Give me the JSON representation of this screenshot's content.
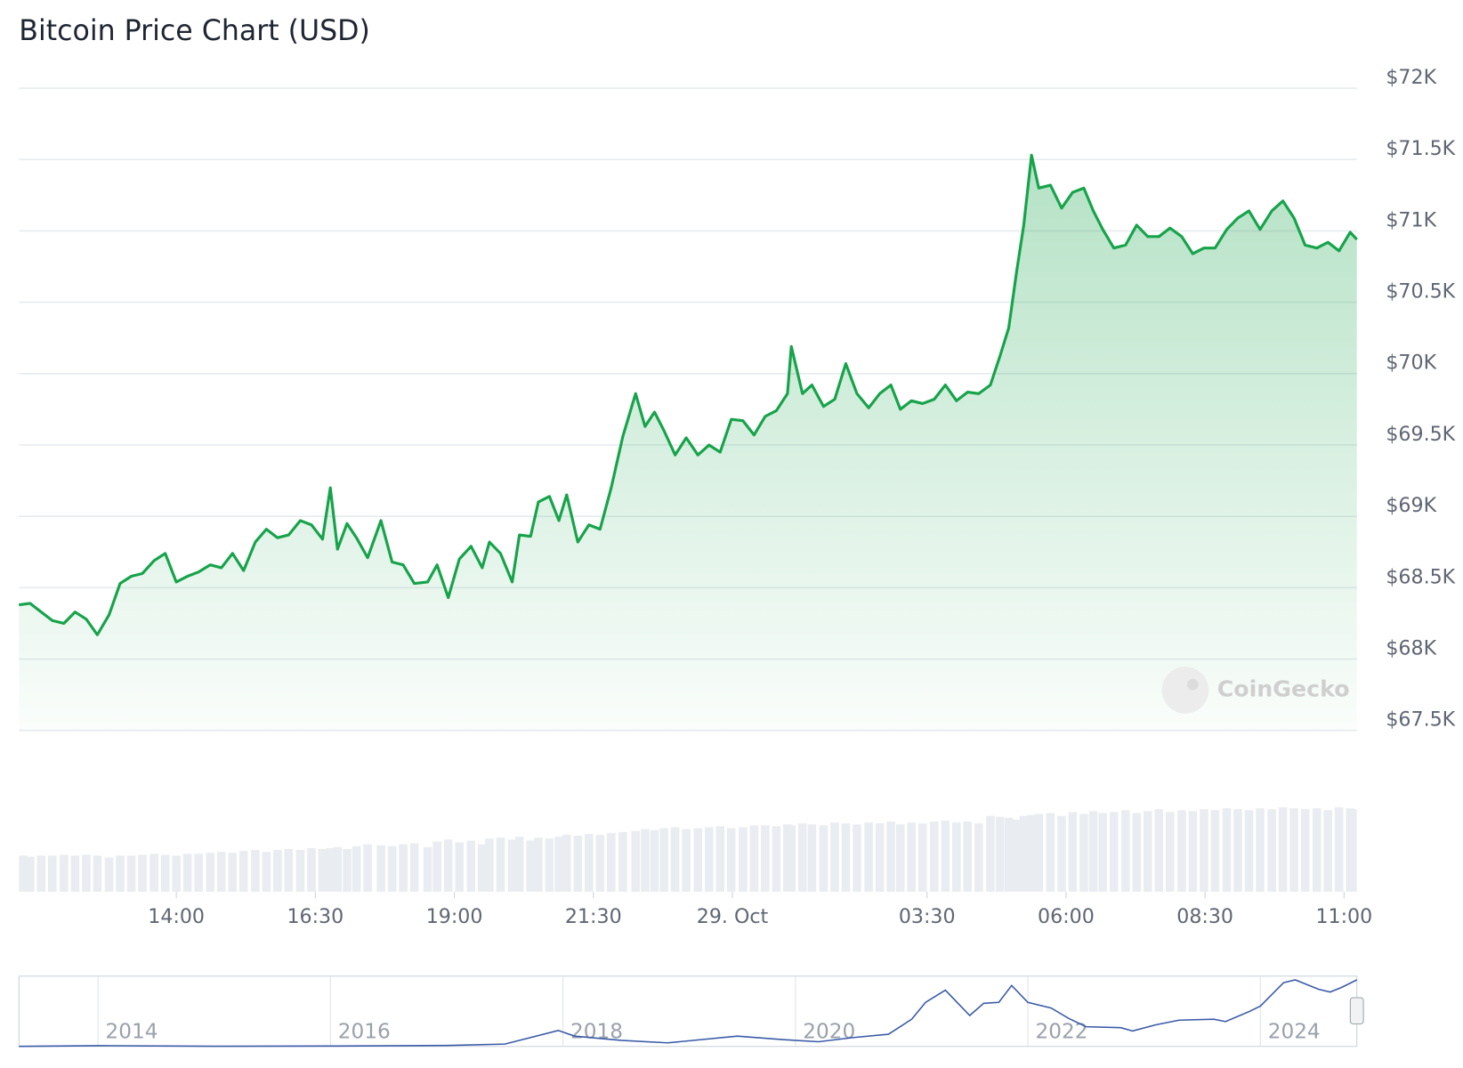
{
  "chart_data": {
    "type": "line",
    "title": "Bitcoin Price Chart (USD)",
    "watermark": "CoinGecko",
    "color": "#16a34a",
    "grid": true,
    "x": [
      11.17,
      11.37,
      11.57,
      11.77,
      11.98,
      12.18,
      12.38,
      12.58,
      12.79,
      12.99,
      13.19,
      13.39,
      13.6,
      13.8,
      14,
      14.2,
      14.4,
      14.61,
      14.81,
      15.01,
      15.21,
      15.42,
      15.62,
      15.82,
      16.02,
      16.23,
      16.43,
      16.63,
      16.77,
      16.9,
      17.07,
      17.24,
      17.44,
      17.68,
      17.88,
      18.08,
      18.28,
      18.52,
      18.69,
      18.89,
      19.09,
      19.3,
      19.5,
      19.63,
      19.83,
      20.04,
      20.17,
      20.37,
      20.51,
      20.71,
      20.88,
      21.02,
      21.22,
      21.42,
      21.62,
      21.82,
      22.03,
      22.26,
      22.43,
      22.6,
      22.77,
      22.97,
      23.17,
      23.38,
      23.58,
      23.78,
      23.98,
      24.19,
      24.39,
      24.59,
      24.79,
      24.99,
      25.06,
      25.26,
      25.43,
      25.64,
      25.84,
      26.04,
      26.24,
      26.45,
      26.65,
      26.85,
      27.02,
      27.22,
      27.42,
      27.63,
      27.83,
      28.03,
      28.23,
      28.43,
      28.64,
      28.81,
      28.97,
      29.11,
      29.24,
      29.38,
      29.51,
      29.72,
      29.92,
      30.12,
      30.32,
      30.49,
      30.66,
      30.86,
      31.07,
      31.27,
      31.47,
      31.67,
      31.87,
      32.08,
      32.28,
      32.48,
      32.68,
      32.89,
      33.09,
      33.29,
      33.49,
      33.7,
      33.9,
      34.1,
      34.3,
      34.51,
      34.71,
      34.91,
      35.11,
      35.23
    ],
    "values": [
      68380,
      68390,
      68330,
      68270,
      68250,
      68330,
      68280,
      68170,
      68310,
      68530,
      68580,
      68600,
      68690,
      68740,
      68540,
      68580,
      68610,
      68660,
      68640,
      68740,
      68620,
      68820,
      68910,
      68850,
      68870,
      68970,
      68940,
      68840,
      69200,
      68770,
      68950,
      68850,
      68710,
      68970,
      68680,
      68660,
      68530,
      68540,
      68660,
      68430,
      68700,
      68790,
      68640,
      68820,
      68740,
      68540,
      68870,
      68860,
      69100,
      69140,
      68970,
      69150,
      68820,
      68940,
      68910,
      69200,
      69560,
      69860,
      69630,
      69730,
      69600,
      69430,
      69550,
      69430,
      69500,
      69450,
      69680,
      69670,
      69570,
      69700,
      69740,
      69860,
      70190,
      69860,
      69920,
      69770,
      69820,
      70070,
      69860,
      69760,
      69860,
      69920,
      69750,
      69810,
      69790,
      69820,
      69920,
      69810,
      69870,
      69860,
      69920,
      70120,
      70320,
      70710,
      71040,
      71530,
      71300,
      71320,
      71160,
      71270,
      71300,
      71140,
      71010,
      70880,
      70900,
      71040,
      70960,
      70960,
      71020,
      70960,
      70840,
      70880,
      70880,
      71010,
      71090,
      71140,
      71010,
      71140,
      71210,
      71090,
      70900,
      70880,
      70920,
      70860,
      70990,
      70940
    ],
    "volume": [
      38,
      37,
      38,
      38,
      39,
      38,
      39,
      38,
      36,
      38,
      38,
      39,
      40,
      39,
      38,
      40,
      40,
      41,
      42,
      41,
      43,
      44,
      42,
      44,
      45,
      44,
      46,
      45,
      46,
      47,
      45,
      48,
      50,
      49,
      48,
      50,
      51,
      47,
      53,
      55,
      52,
      54,
      50,
      56,
      57,
      55,
      58,
      54,
      57,
      56,
      58,
      60,
      59,
      61,
      60,
      62,
      63,
      64,
      66,
      65,
      67,
      68,
      66,
      67,
      68,
      69,
      67,
      68,
      70,
      70,
      69,
      71,
      70,
      72,
      71,
      70,
      73,
      72,
      71,
      73,
      72,
      74,
      71,
      73,
      72,
      74,
      75,
      73,
      74,
      72,
      80,
      79,
      78,
      76,
      80,
      81,
      82,
      83,
      80,
      84,
      82,
      85,
      83,
      84,
      86,
      83,
      85,
      87,
      84,
      86,
      85,
      87,
      86,
      88,
      87,
      86,
      88,
      87,
      89,
      88,
      87,
      88,
      86,
      89,
      88,
      87
    ],
    "xlim": [
      11.17,
      35.23
    ],
    "xticks": [
      {
        "value": 14,
        "label": "14:00"
      },
      {
        "value": 16.5,
        "label": "16:30"
      },
      {
        "value": 19,
        "label": "19:00"
      },
      {
        "value": 21.5,
        "label": "21:30"
      },
      {
        "value": 24,
        "label": "29. Oct"
      },
      {
        "value": 27.5,
        "label": "03:30"
      },
      {
        "value": 30,
        "label": "06:00"
      },
      {
        "value": 32.5,
        "label": "08:30"
      },
      {
        "value": 35,
        "label": "11:00"
      }
    ],
    "ylim": [
      67500,
      72000
    ],
    "yticks": [
      {
        "value": 67500,
        "label": "$67.5K"
      },
      {
        "value": 68000,
        "label": "$68K"
      },
      {
        "value": 68500,
        "label": "$68.5K"
      },
      {
        "value": 69000,
        "label": "$69K"
      },
      {
        "value": 69500,
        "label": "$69.5K"
      },
      {
        "value": 70000,
        "label": "$70K"
      },
      {
        "value": 70500,
        "label": "$70.5K"
      },
      {
        "value": 71000,
        "label": "$71K"
      },
      {
        "value": 71500,
        "label": "$71.5K"
      },
      {
        "value": 72000,
        "label": "$72K"
      }
    ],
    "navigator": {
      "color": "#3a5ba8",
      "x": [
        2013.32,
        2014,
        2015,
        2016,
        2017,
        2017.5,
        2017.96,
        2018.1,
        2018.5,
        2018.9,
        2019.5,
        2019.9,
        2020.2,
        2020.5,
        2020.8,
        2021,
        2021.12,
        2021.29,
        2021.5,
        2021.62,
        2021.75,
        2021.86,
        2022,
        2022.2,
        2022.35,
        2022.5,
        2022.8,
        2022.9,
        2023.1,
        2023.3,
        2023.6,
        2023.7,
        2023.9,
        2024,
        2024.2,
        2024.3,
        2024.5,
        2024.6,
        2024.7,
        2024.83
      ],
      "values": [
        100,
        800,
        250,
        430,
        1000,
        2500,
        17000,
        11000,
        6500,
        3800,
        11000,
        7200,
        5000,
        9500,
        13000,
        29000,
        47000,
        60000,
        33000,
        46000,
        47000,
        65000,
        47000,
        41000,
        30000,
        21000,
        20000,
        16500,
        23000,
        28000,
        29000,
        26500,
        37000,
        43000,
        68000,
        71000,
        61000,
        58000,
        63000,
        71000
      ],
      "xlim": [
        2013.32,
        2024.83
      ],
      "ylim": [
        0,
        75000
      ],
      "xticks": [
        2014,
        2016,
        2018,
        2020,
        2022,
        2024
      ]
    }
  }
}
